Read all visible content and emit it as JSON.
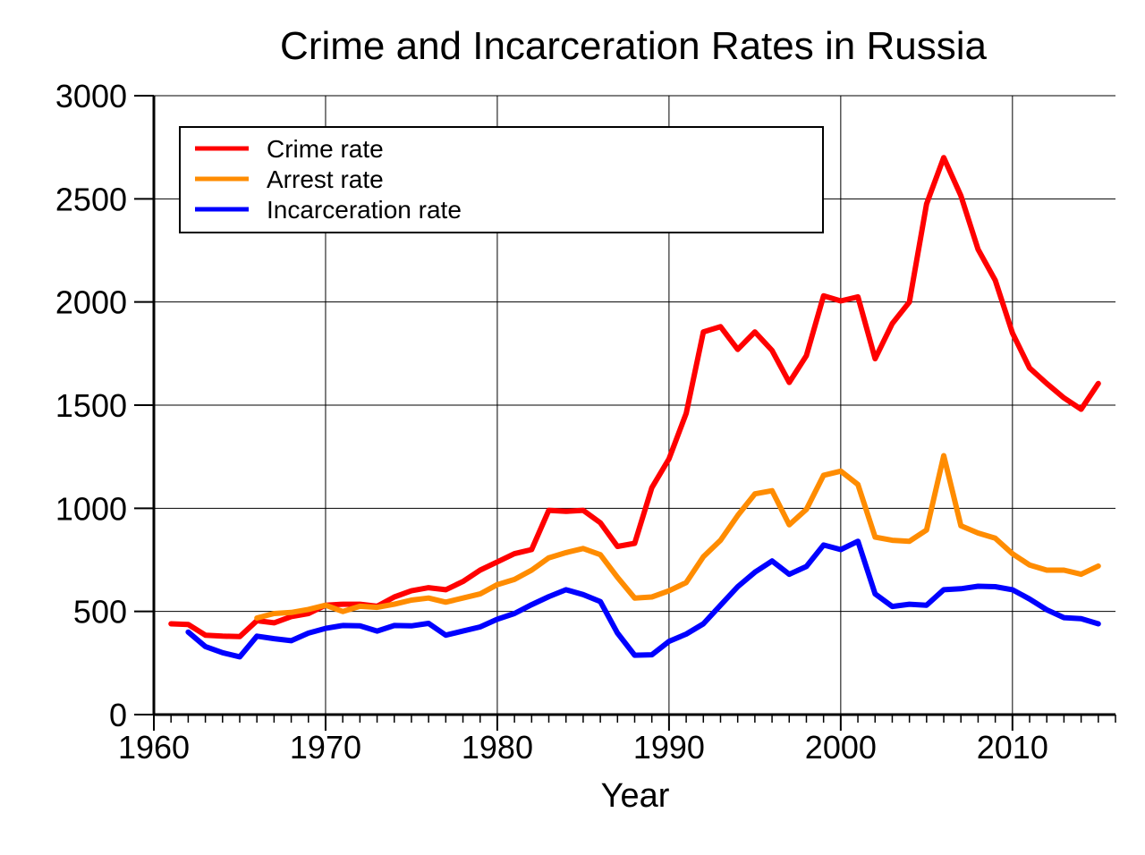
{
  "chart_data": {
    "type": "line",
    "title": "Crime and Incarceration Rates in Russia",
    "xlabel": "Year",
    "ylabel": "",
    "xlim": [
      1960,
      2016
    ],
    "ylim": [
      0,
      3000
    ],
    "x_ticks": [
      1960,
      1970,
      1980,
      1990,
      2000,
      2010
    ],
    "y_ticks": [
      0,
      500,
      1000,
      1500,
      2000,
      2500,
      3000
    ],
    "grid": true,
    "legend_position": "top-left",
    "series": [
      {
        "name": "Crime rate",
        "color": "#ff0000",
        "x": [
          1961,
          1962,
          1963,
          1964,
          1965,
          1966,
          1967,
          1968,
          1969,
          1970,
          1971,
          1972,
          1973,
          1974,
          1975,
          1976,
          1977,
          1978,
          1979,
          1980,
          1981,
          1982,
          1983,
          1984,
          1985,
          1986,
          1987,
          1988,
          1989,
          1990,
          1991,
          1992,
          1993,
          1994,
          1995,
          1996,
          1997,
          1998,
          1999,
          2000,
          2001,
          2002,
          2003,
          2004,
          2005,
          2006,
          2007,
          2008,
          2009,
          2010,
          2011,
          2012,
          2013,
          2014,
          2015
        ],
        "values": [
          440,
          437,
          385,
          380,
          378,
          455,
          445,
          475,
          490,
          530,
          535,
          535,
          525,
          570,
          600,
          615,
          605,
          645,
          700,
          740,
          780,
          800,
          990,
          985,
          990,
          930,
          815,
          830,
          1100,
          1240,
          1460,
          1855,
          1880,
          1770,
          1855,
          1765,
          1610,
          1740,
          2030,
          2005,
          2025,
          1725,
          1895,
          2000,
          2475,
          2700,
          2515,
          2255,
          2105,
          1850,
          1680,
          1605,
          1535,
          1480,
          1605
        ]
      },
      {
        "name": "Arrest rate",
        "color": "#ff8c00",
        "x": [
          1966,
          1967,
          1968,
          1969,
          1970,
          1971,
          1972,
          1973,
          1974,
          1975,
          1976,
          1977,
          1978,
          1979,
          1980,
          1981,
          1982,
          1983,
          1984,
          1985,
          1986,
          1987,
          1988,
          1989,
          1990,
          1991,
          1992,
          1993,
          1994,
          1995,
          1996,
          1997,
          1998,
          1999,
          2000,
          2001,
          2002,
          2003,
          2004,
          2005,
          2006,
          2007,
          2008,
          2009,
          2010,
          2011,
          2012,
          2013,
          2014,
          2015
        ],
        "values": [
          468,
          490,
          495,
          510,
          530,
          500,
          525,
          520,
          535,
          555,
          565,
          545,
          565,
          585,
          630,
          655,
          700,
          760,
          785,
          805,
          775,
          665,
          565,
          570,
          600,
          640,
          765,
          845,
          965,
          1070,
          1085,
          920,
          995,
          1160,
          1180,
          1115,
          860,
          845,
          840,
          895,
          1255,
          915,
          880,
          855,
          780,
          725,
          700,
          700,
          680,
          720
        ]
      },
      {
        "name": "Incarceration rate",
        "color": "#0000ff",
        "x": [
          1962,
          1963,
          1964,
          1965,
          1966,
          1967,
          1968,
          1969,
          1970,
          1971,
          1972,
          1973,
          1974,
          1975,
          1976,
          1977,
          1978,
          1979,
          1980,
          1981,
          1982,
          1983,
          1984,
          1985,
          1986,
          1987,
          1988,
          1989,
          1990,
          1991,
          1992,
          1993,
          1994,
          1995,
          1996,
          1997,
          1998,
          1999,
          2000,
          2001,
          2002,
          2003,
          2004,
          2005,
          2006,
          2007,
          2008,
          2009,
          2010,
          2011,
          2012,
          2013,
          2014,
          2015
        ],
        "values": [
          400,
          330,
          300,
          280,
          380,
          368,
          358,
          395,
          418,
          432,
          430,
          405,
          432,
          430,
          442,
          385,
          405,
          425,
          462,
          490,
          533,
          572,
          605,
          582,
          548,
          395,
          288,
          290,
          355,
          390,
          440,
          530,
          620,
          690,
          745,
          680,
          718,
          822,
          800,
          840,
          585,
          524,
          535,
          530,
          605,
          610,
          622,
          620,
          605,
          560,
          508,
          470,
          465,
          440
        ]
      }
    ]
  }
}
